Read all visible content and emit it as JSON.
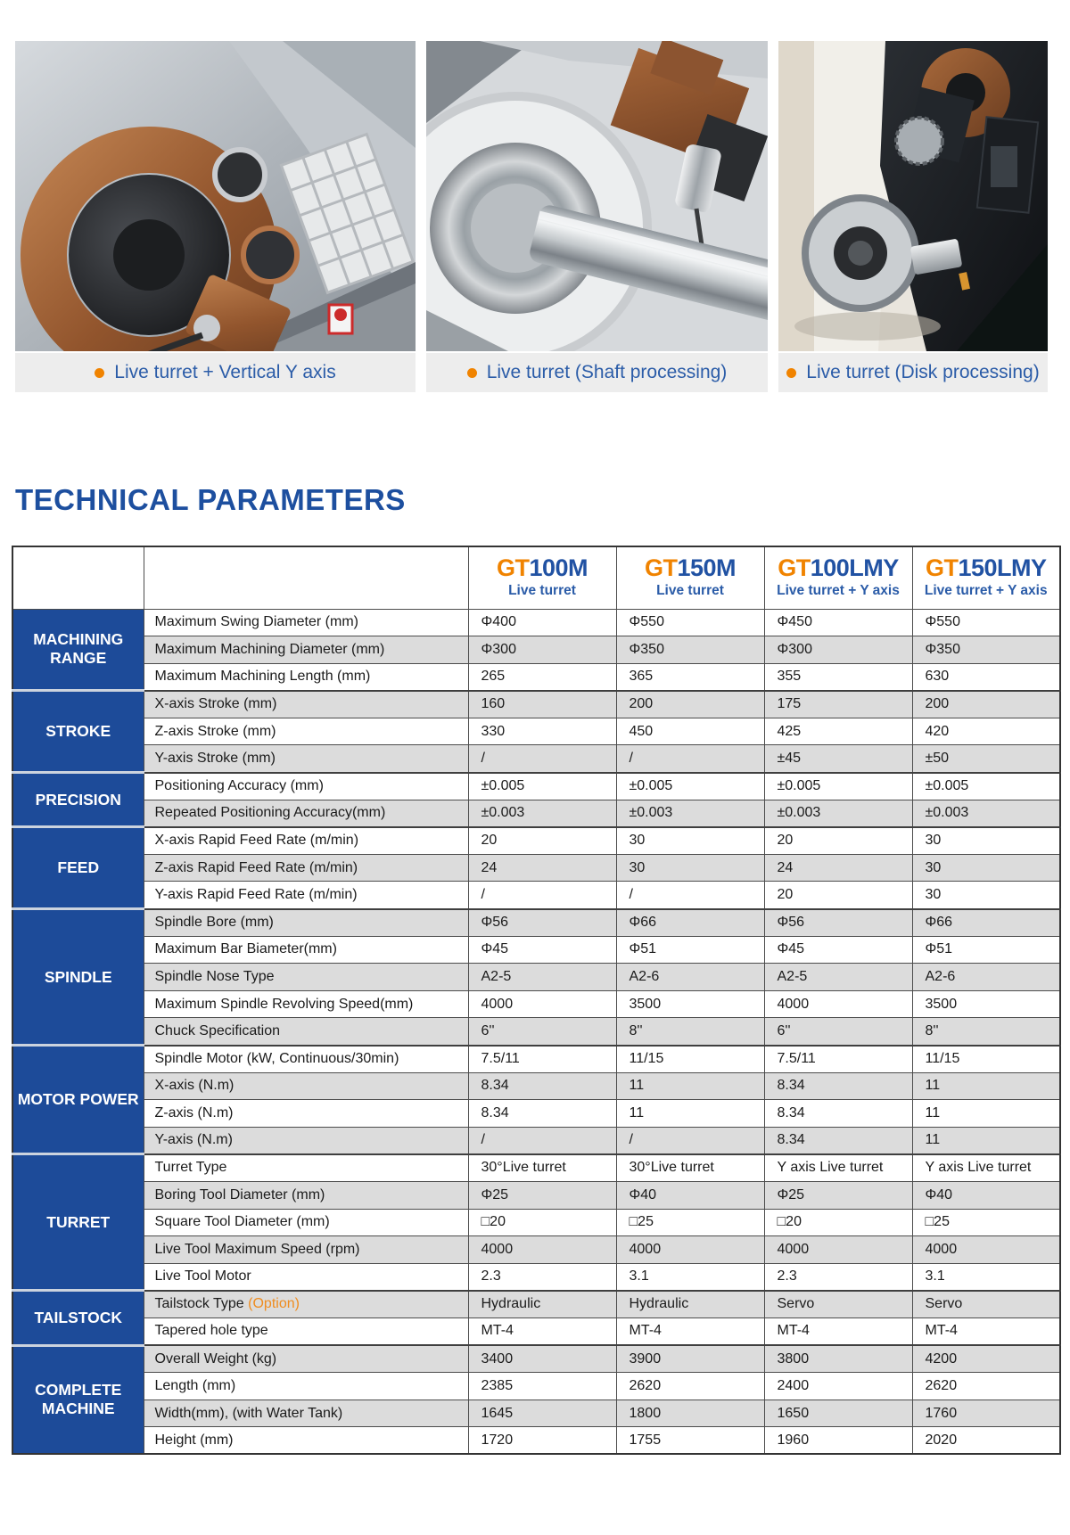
{
  "colors": {
    "brand_blue": "#1d4b99",
    "title_blue": "#1d4f9f",
    "model_blue": "#2152a3",
    "accent_orange": "#f08300",
    "caption_blue": "#2b5ca8",
    "option_orange": "#ef8c1f",
    "stripe_gray": "#dcdcdc",
    "caption_bar_gray": "#ededed"
  },
  "gallery": [
    {
      "caption": "Live turret + Vertical Y axis"
    },
    {
      "caption": "Live turret (Shaft processing)"
    },
    {
      "caption": "Live turret (Disk processing)"
    }
  ],
  "section_title": "TECHNICAL PARAMETERS",
  "table": {
    "models": [
      {
        "prefix": "GT",
        "name": "100M",
        "sub": "Live turret"
      },
      {
        "prefix": "GT",
        "name": "150M",
        "sub": "Live turret"
      },
      {
        "prefix": "GT",
        "name": "100LMY",
        "sub": "Live turret + Y axis"
      },
      {
        "prefix": "GT",
        "name": "150LMY",
        "sub": "Live turret + Y axis"
      }
    ],
    "groups": [
      {
        "id": "machining-range",
        "category": "MACHINING RANGE",
        "rows": [
          {
            "label": "Maximum Swing Diameter (mm)",
            "values": [
              "Φ400",
              "Φ550",
              "Φ450",
              "Φ550"
            ]
          },
          {
            "label": "Maximum Machining Diameter (mm)",
            "values": [
              "Φ300",
              "Φ350",
              "Φ300",
              "Φ350"
            ]
          },
          {
            "label": "Maximum Machining Length (mm)",
            "values": [
              "265",
              "365",
              "355",
              "630"
            ]
          }
        ]
      },
      {
        "id": "stroke",
        "category": "STROKE",
        "rows": [
          {
            "label": "X-axis Stroke (mm)",
            "values": [
              "160",
              "200",
              "175",
              "200"
            ]
          },
          {
            "label": "Z-axis Stroke (mm)",
            "values": [
              "330",
              "450",
              "425",
              "420"
            ]
          },
          {
            "label": "Y-axis Stroke (mm)",
            "values": [
              "/",
              "/",
              "±45",
              "±50"
            ]
          }
        ]
      },
      {
        "id": "precision",
        "category": "PRECISION",
        "rows": [
          {
            "label": "Positioning Accuracy (mm)",
            "values": [
              "±0.005",
              "±0.005",
              "±0.005",
              "±0.005"
            ]
          },
          {
            "label": "Repeated Positioning Accuracy(mm)",
            "values": [
              "±0.003",
              "±0.003",
              "±0.003",
              "±0.003"
            ]
          }
        ]
      },
      {
        "id": "feed",
        "category": "FEED",
        "rows": [
          {
            "label": "X-axis Rapid Feed Rate (m/min)",
            "values": [
              "20",
              "30",
              "20",
              "30"
            ]
          },
          {
            "label": "Z-axis Rapid Feed Rate (m/min)",
            "values": [
              "24",
              "30",
              "24",
              "30"
            ]
          },
          {
            "label": "Y-axis Rapid Feed Rate (m/min)",
            "values": [
              "/",
              "/",
              "20",
              "30"
            ]
          }
        ]
      },
      {
        "id": "spindle",
        "category": "SPINDLE",
        "rows": [
          {
            "label": "Spindle Bore (mm)",
            "values": [
              "Φ56",
              "Φ66",
              "Φ56",
              "Φ66"
            ]
          },
          {
            "label": "Maximum Bar Biameter(mm)",
            "values": [
              "Φ45",
              "Φ51",
              "Φ45",
              "Φ51"
            ]
          },
          {
            "label": "Spindle Nose Type",
            "values": [
              "A2-5",
              "A2-6",
              "A2-5",
              "A2-6"
            ]
          },
          {
            "label": "Maximum Spindle Revolving Speed(mm)",
            "values": [
              "4000",
              "3500",
              "4000",
              "3500"
            ]
          },
          {
            "label": "Chuck Specification",
            "values": [
              "6''",
              "8''",
              "6''",
              "8''"
            ]
          }
        ]
      },
      {
        "id": "motor-power",
        "category": "MOTOR POWER",
        "rows": [
          {
            "label": "Spindle Motor (kW, Continuous/30min)",
            "values": [
              "7.5/11",
              "11/15",
              "7.5/11",
              "11/15"
            ]
          },
          {
            "label": "X-axis  (N.m)",
            "values": [
              "8.34",
              "11",
              "8.34",
              "11"
            ]
          },
          {
            "label": "Z-axis (N.m)",
            "values": [
              "8.34",
              "11",
              "8.34",
              "11"
            ]
          },
          {
            "label": "Y-axis  (N.m)",
            "values": [
              "/",
              "/",
              "8.34",
              "11"
            ]
          }
        ]
      },
      {
        "id": "turret",
        "category": "TURRET",
        "rows": [
          {
            "label": "Turret Type",
            "values": [
              "30°Live turret",
              "30°Live turret",
              "Y axis Live turret",
              "Y axis Live turret"
            ]
          },
          {
            "label": "Boring Tool Diameter (mm)",
            "values": [
              "Φ25",
              "Φ40",
              "Φ25",
              "Φ40"
            ]
          },
          {
            "label": "Square Tool Diameter (mm)",
            "values": [
              "□20",
              "□25",
              "□20",
              "□25"
            ]
          },
          {
            "label": "Live Tool Maximum Speed (rpm)",
            "values": [
              "4000",
              "4000",
              "4000",
              "4000"
            ]
          },
          {
            "label": "Live Tool Motor",
            "values": [
              "2.3",
              "3.1",
              "2.3",
              "3.1"
            ]
          }
        ]
      },
      {
        "id": "tailstock",
        "category": "TAILSTOCK",
        "rows": [
          {
            "label": "Tailstock Type",
            "label_suffix": "(Option)",
            "values": [
              "Hydraulic",
              "Hydraulic",
              "Servo",
              "Servo"
            ]
          },
          {
            "label": "Tapered hole type",
            "values": [
              "MT-4",
              "MT-4",
              "MT-4",
              "MT-4"
            ]
          }
        ]
      },
      {
        "id": "complete-machine",
        "category": "COMPLETE MACHINE",
        "rows": [
          {
            "label": "Overall Weight (kg)",
            "values": [
              "3400",
              "3900",
              "3800",
              "4200"
            ]
          },
          {
            "label": "Length (mm)",
            "values": [
              "2385",
              "2620",
              "2400",
              "2620"
            ]
          },
          {
            "label": "Width(mm), (with Water Tank)",
            "values": [
              "1645",
              "1800",
              "1650",
              "1760"
            ]
          },
          {
            "label": "Height (mm)",
            "values": [
              "1720",
              "1755",
              "1960",
              "2020"
            ]
          }
        ]
      }
    ]
  }
}
